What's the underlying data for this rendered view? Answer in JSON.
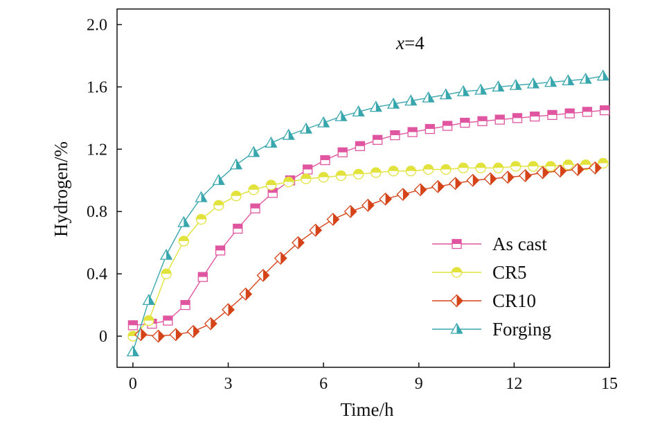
{
  "chart_data": {
    "type": "line",
    "xlabel": "Time/h",
    "ylabel": "Hydrogen/%",
    "xlim": [
      -0.5,
      15
    ],
    "ylim": [
      -0.2,
      2.1
    ],
    "xticks": [
      0,
      3,
      6,
      9,
      12,
      15
    ],
    "yticks": [
      0,
      0.4,
      0.8,
      1.2,
      1.6,
      2.0
    ],
    "xtick_labels": [
      "0",
      "3",
      "6",
      "9",
      "12",
      "15"
    ],
    "ytick_labels": [
      "0",
      "0.4",
      "0.8",
      "1.2",
      "1.6",
      "2.0"
    ],
    "annotation": {
      "var": "x",
      "rest": "=4"
    },
    "grid": false,
    "legend_position": "lower-right",
    "series": [
      {
        "name": "As cast",
        "color": "#e0559f",
        "marker": "square",
        "x": [
          0,
          0.6,
          1.1,
          1.65,
          2.2,
          2.75,
          3.3,
          3.85,
          4.4,
          4.95,
          5.5,
          6.05,
          6.6,
          7.15,
          7.7,
          8.25,
          8.8,
          9.35,
          9.9,
          10.45,
          11.0,
          11.55,
          12.1,
          12.65,
          13.2,
          13.75,
          14.3,
          14.85
        ],
        "y": [
          0.07,
          0.08,
          0.1,
          0.2,
          0.38,
          0.55,
          0.69,
          0.82,
          0.92,
          1.0,
          1.07,
          1.13,
          1.18,
          1.22,
          1.26,
          1.29,
          1.31,
          1.33,
          1.35,
          1.37,
          1.38,
          1.39,
          1.4,
          1.41,
          1.42,
          1.43,
          1.44,
          1.45
        ]
      },
      {
        "name": "CR5",
        "color": "#e2e23c",
        "marker": "circle",
        "x": [
          0,
          0.5,
          1.05,
          1.6,
          2.15,
          2.7,
          3.25,
          3.8,
          4.35,
          4.9,
          5.45,
          6.0,
          6.55,
          7.1,
          7.65,
          8.2,
          8.75,
          9.3,
          9.85,
          10.4,
          10.95,
          11.5,
          12.05,
          12.6,
          13.15,
          13.7,
          14.25,
          14.8
        ],
        "y": [
          0.0,
          0.1,
          0.4,
          0.61,
          0.75,
          0.84,
          0.9,
          0.94,
          0.97,
          0.99,
          1.01,
          1.02,
          1.03,
          1.04,
          1.05,
          1.06,
          1.06,
          1.07,
          1.07,
          1.08,
          1.08,
          1.08,
          1.09,
          1.09,
          1.09,
          1.1,
          1.1,
          1.11
        ]
      },
      {
        "name": "CR10",
        "color": "#d54319",
        "marker": "diamond",
        "x": [
          0.25,
          0.8,
          1.35,
          1.9,
          2.45,
          3.0,
          3.55,
          4.1,
          4.65,
          5.2,
          5.75,
          6.3,
          6.85,
          7.4,
          7.95,
          8.5,
          9.05,
          9.6,
          10.15,
          10.7,
          11.25,
          11.8,
          12.35,
          12.9,
          13.45,
          14.0,
          14.55
        ],
        "y": [
          0.01,
          0.0,
          0.01,
          0.03,
          0.08,
          0.17,
          0.27,
          0.39,
          0.5,
          0.6,
          0.68,
          0.75,
          0.8,
          0.84,
          0.88,
          0.91,
          0.94,
          0.96,
          0.98,
          1.0,
          1.01,
          1.02,
          1.03,
          1.05,
          1.06,
          1.07,
          1.08
        ]
      },
      {
        "name": "Forging",
        "color": "#38a6ad",
        "marker": "triangle",
        "x": [
          0,
          0.5,
          1.05,
          1.6,
          2.15,
          2.7,
          3.25,
          3.8,
          4.35,
          4.9,
          5.45,
          6.0,
          6.55,
          7.1,
          7.65,
          8.2,
          8.75,
          9.3,
          9.85,
          10.4,
          10.95,
          11.5,
          12.05,
          12.6,
          13.15,
          13.7,
          14.25,
          14.8
        ],
        "y": [
          -0.1,
          0.23,
          0.52,
          0.73,
          0.89,
          1.0,
          1.1,
          1.18,
          1.24,
          1.29,
          1.33,
          1.37,
          1.41,
          1.44,
          1.47,
          1.49,
          1.51,
          1.53,
          1.55,
          1.57,
          1.58,
          1.6,
          1.61,
          1.62,
          1.63,
          1.64,
          1.65,
          1.67
        ]
      }
    ]
  }
}
